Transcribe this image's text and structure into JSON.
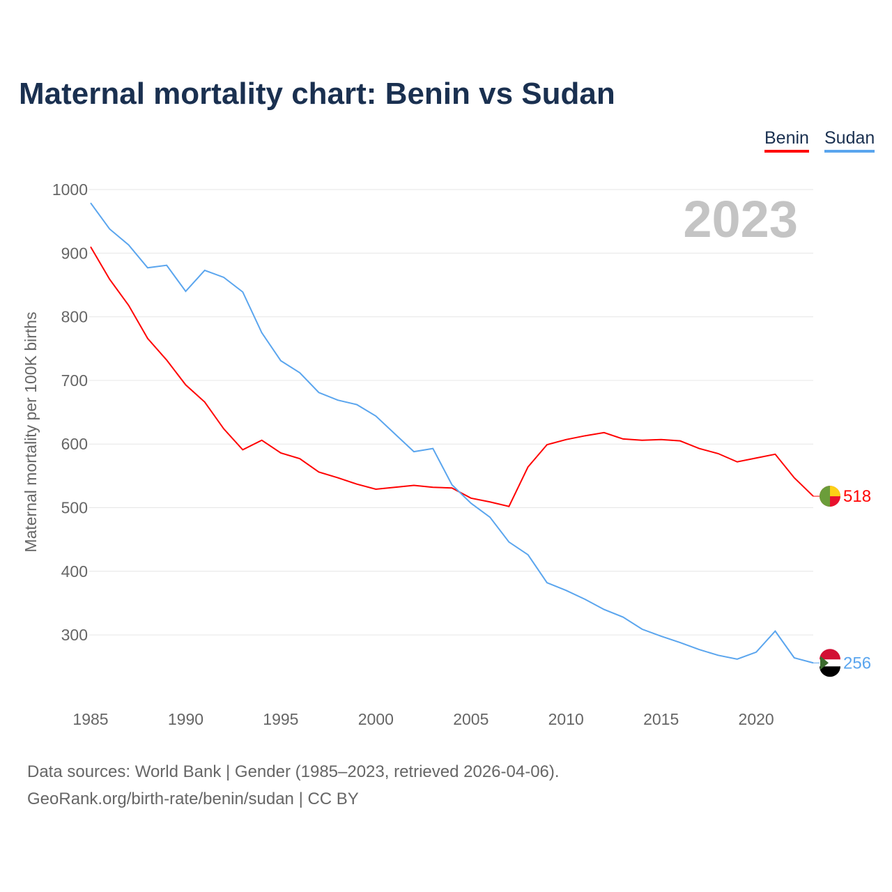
{
  "title": "Maternal mortality chart: Benin vs Sudan",
  "year_label": "2023",
  "source_line1": "Data sources: World Bank | Gender (1985–2023, retrieved 2026-04-06).",
  "source_line2": "GeoRank.org/birth-rate/benin/sudan | CC BY",
  "chart_data": {
    "type": "line",
    "title": "Maternal mortality chart: Benin vs Sudan",
    "xlabel": "",
    "ylabel": "Maternal mortality per 100K births",
    "xlim": [
      1985,
      2023
    ],
    "ylim": [
      200,
      1000
    ],
    "xticks": [
      1985,
      1990,
      1995,
      2000,
      2005,
      2010,
      2015,
      2020
    ],
    "yticks": [
      300,
      400,
      500,
      600,
      700,
      800,
      900,
      1000
    ],
    "grid": true,
    "legend": "top-right",
    "x": [
      1985,
      1986,
      1987,
      1988,
      1989,
      1990,
      1991,
      1992,
      1993,
      1994,
      1995,
      1996,
      1997,
      1998,
      1999,
      2000,
      2001,
      2002,
      2003,
      2004,
      2005,
      2006,
      2007,
      2008,
      2009,
      2010,
      2011,
      2012,
      2013,
      2014,
      2015,
      2016,
      2017,
      2018,
      2019,
      2020,
      2021,
      2022,
      2023
    ],
    "series": [
      {
        "name": "Benin",
        "color": "#ff0000",
        "end_label": "518",
        "values": [
          910,
          859,
          818,
          766,
          732,
          693,
          666,
          624,
          591,
          606,
          586,
          577,
          556,
          547,
          537,
          529,
          532,
          535,
          532,
          531,
          515,
          509,
          502,
          564,
          599,
          607,
          613,
          618,
          608,
          606,
          607,
          605,
          593,
          585,
          572,
          578,
          584,
          547,
          518
        ]
      },
      {
        "name": "Sudan",
        "color": "#5aa5ee",
        "end_label": "256",
        "values": [
          979,
          938,
          913,
          877,
          881,
          840,
          873,
          862,
          839,
          775,
          731,
          712,
          681,
          669,
          662,
          644,
          616,
          588,
          593,
          536,
          507,
          485,
          446,
          426,
          382,
          370,
          356,
          340,
          328,
          309,
          298,
          288,
          277,
          268,
          262,
          273,
          306,
          264,
          256
        ]
      }
    ]
  }
}
